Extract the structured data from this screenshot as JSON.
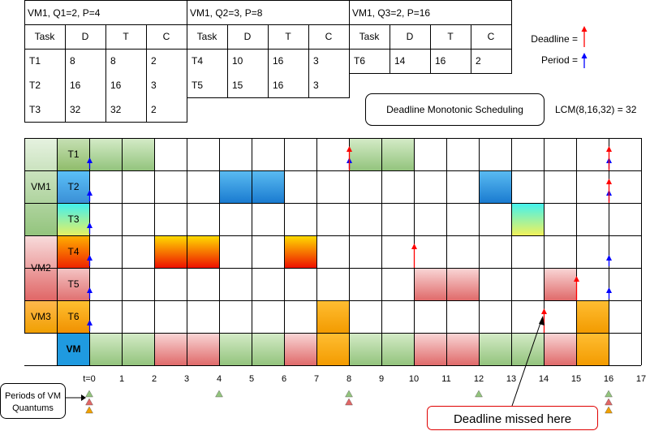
{
  "tables": [
    {
      "title": "VM1, Q1=2, P=4",
      "headers": [
        "Task",
        "D",
        "T",
        "C"
      ],
      "rows": [
        [
          "T1",
          "8",
          "8",
          "2"
        ],
        [
          "T2",
          "16",
          "16",
          "3"
        ],
        [
          "T3",
          "32",
          "32",
          "2"
        ]
      ]
    },
    {
      "title": "VM1, Q2=3, P=8",
      "headers": [
        "Task",
        "D",
        "T",
        "C"
      ],
      "rows": [
        [
          "T4",
          "10",
          "16",
          "3"
        ],
        [
          "T5",
          "15",
          "16",
          "3"
        ]
      ]
    },
    {
      "title": "VM1, Q3=2, P=16",
      "headers": [
        "Task",
        "D",
        "T",
        "C"
      ],
      "rows": [
        [
          "T6",
          "14",
          "16",
          "2"
        ]
      ]
    }
  ],
  "legend": {
    "deadline": "Deadline =",
    "period": "Period =",
    "deadline_color": "#ff0000",
    "period_color": "#0000ff"
  },
  "scheduling_label": "Deadline Monotonic Scheduling",
  "lcm_label": "LCM(8,16,32) = 32",
  "vm_groups": [
    {
      "label": "VM1",
      "rows": [
        0,
        1,
        2
      ],
      "color_top": "#e6f2e0",
      "color_bottom": "#93c47d"
    },
    {
      "label": "VM2",
      "rows": [
        3,
        4
      ],
      "color_top": "#f8dcdc",
      "color_bottom": "#e06666"
    },
    {
      "label": "VM3",
      "rows": [
        5
      ],
      "color_top": "#ffb84d",
      "color_bottom": "#f0a000"
    }
  ],
  "rows": [
    {
      "task": "T1",
      "label_top": "#c6e0b4",
      "label_bottom": "#8fbc6a"
    },
    {
      "task": "T2",
      "label_top": "#5bc0f8",
      "label_bottom": "#3a8fd6"
    },
    {
      "task": "T3",
      "label_top": "#40f0f0",
      "label_bottom": "#e8f060"
    },
    {
      "task": "T4",
      "label_top": "#ffb000",
      "label_bottom": "#ee2200"
    },
    {
      "task": "T5",
      "label_top": "#f4c4c4",
      "label_bottom": "#e07070"
    },
    {
      "task": "T6",
      "label_top": "#ffc030",
      "label_bottom": "#f09000"
    },
    {
      "task": "VM",
      "label_top": "#1f9ae0",
      "label_bottom": "#1f9ae0"
    }
  ],
  "styles": {
    "green": [
      "#d5ecc8",
      "#93c47d"
    ],
    "blue": [
      "#5bbcf2",
      "#1a7bd0"
    ],
    "cyan": [
      "#3ff2f2",
      "#f2f25a"
    ],
    "red": [
      "#ffe000",
      "#ee1100"
    ],
    "pink": [
      "#f9d7d7",
      "#e06a6a"
    ],
    "orange": [
      "#ffbe33",
      "#f39b00"
    ]
  },
  "blocks": [
    {
      "row": 0,
      "start": 0,
      "end": 2,
      "style": "green"
    },
    {
      "row": 0,
      "start": 8,
      "end": 10,
      "style": "green"
    },
    {
      "row": 1,
      "start": 4,
      "end": 6,
      "style": "blue"
    },
    {
      "row": 1,
      "start": 12,
      "end": 13,
      "style": "blue"
    },
    {
      "row": 2,
      "start": 13,
      "end": 14,
      "style": "cyan"
    },
    {
      "row": 3,
      "start": 2,
      "end": 4,
      "style": "red"
    },
    {
      "row": 3,
      "start": 6,
      "end": 7,
      "style": "red"
    },
    {
      "row": 4,
      "start": 10,
      "end": 12,
      "style": "pink"
    },
    {
      "row": 4,
      "start": 14,
      "end": 15,
      "style": "pink"
    },
    {
      "row": 5,
      "start": 7,
      "end": 8,
      "style": "orange"
    },
    {
      "row": 5,
      "start": 15,
      "end": 16,
      "style": "orange"
    },
    {
      "row": 6,
      "start": 0,
      "end": 2,
      "style": "green"
    },
    {
      "row": 6,
      "start": 2,
      "end": 4,
      "style": "pink"
    },
    {
      "row": 6,
      "start": 4,
      "end": 6,
      "style": "green"
    },
    {
      "row": 6,
      "start": 6,
      "end": 7,
      "style": "pink"
    },
    {
      "row": 6,
      "start": 7,
      "end": 8,
      "style": "orange"
    },
    {
      "row": 6,
      "start": 8,
      "end": 10,
      "style": "green"
    },
    {
      "row": 6,
      "start": 10,
      "end": 12,
      "style": "pink"
    },
    {
      "row": 6,
      "start": 12,
      "end": 14,
      "style": "green"
    },
    {
      "row": 6,
      "start": 14,
      "end": 15,
      "style": "pink"
    },
    {
      "row": 6,
      "start": 15,
      "end": 16,
      "style": "orange"
    }
  ],
  "period_arrows": [
    {
      "row": 0,
      "t": 0
    },
    {
      "row": 0,
      "t": 8
    },
    {
      "row": 0,
      "t": 16
    },
    {
      "row": 1,
      "t": 0
    },
    {
      "row": 1,
      "t": 16
    },
    {
      "row": 2,
      "t": 0
    },
    {
      "row": 3,
      "t": 0
    },
    {
      "row": 3,
      "t": 16
    },
    {
      "row": 4,
      "t": 0
    },
    {
      "row": 4,
      "t": 16
    },
    {
      "row": 5,
      "t": 0
    }
  ],
  "deadline_arrows": [
    {
      "row": 0,
      "t": 8
    },
    {
      "row": 0,
      "t": 16
    },
    {
      "row": 1,
      "t": 16
    },
    {
      "row": 3,
      "t": 10
    },
    {
      "row": 4,
      "t": 15
    },
    {
      "row": 5,
      "t": 14
    }
  ],
  "time_labels": [
    "t=0",
    "1",
    "2",
    "3",
    "4",
    "5",
    "6",
    "7",
    "8",
    "9",
    "10",
    "11",
    "12",
    "13",
    "14",
    "15",
    "16",
    "17"
  ],
  "quantum_periods": [
    {
      "t": 0,
      "colors": [
        "#93c47d",
        "#e06666",
        "#f0a000"
      ]
    },
    {
      "t": 4,
      "colors": [
        "#93c47d"
      ]
    },
    {
      "t": 8,
      "colors": [
        "#93c47d",
        "#e06666"
      ]
    },
    {
      "t": 12,
      "colors": [
        "#93c47d"
      ]
    },
    {
      "t": 16,
      "colors": [
        "#93c47d",
        "#e06666",
        "#f0a000"
      ]
    }
  ],
  "quantum_label": [
    "Periods of VM",
    "Quantums"
  ],
  "missed_callout": "Deadline missed here",
  "missed_callout_color": "#e00000"
}
